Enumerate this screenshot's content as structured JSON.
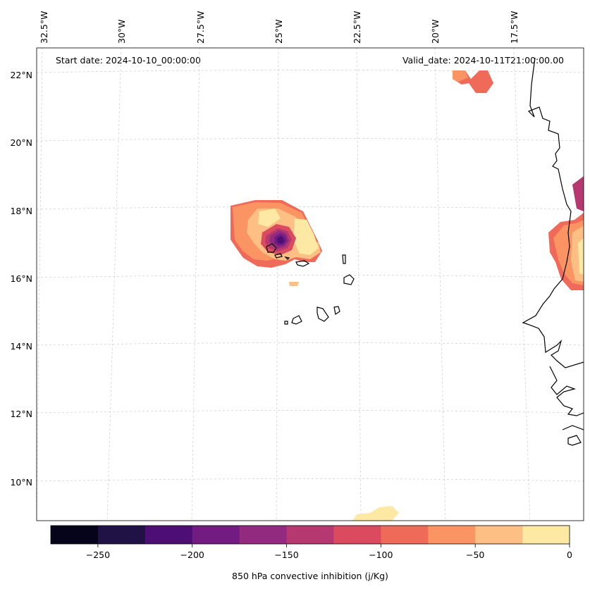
{
  "header": {
    "start_date": "Start date: 2024-10-10_00:00:00",
    "valid_date": "Valid_date: 2024-10-11T21:00:00.00"
  },
  "map": {
    "top_lon_labels": [
      "32.5°W",
      "30°W",
      "27.5°W",
      "25°W",
      "22.5°W",
      "20°W",
      "17.5°W"
    ],
    "left_lat_labels": [
      "22°N",
      "20°N",
      "18°N",
      "16°N",
      "14°N",
      "12°N",
      "10°N"
    ]
  },
  "colorbar": {
    "label": "850 hPa convective inhibition (j/Kg)",
    "tick_labels": [
      "−250",
      "−200",
      "−150",
      "−100",
      "−50",
      "0"
    ],
    "colors": [
      "#05041a",
      "#211245",
      "#4d0f75",
      "#721b80",
      "#922a7f",
      "#b63870",
      "#db4a5e",
      "#f06a5a",
      "#fb9463",
      "#febf84",
      "#fde8a4"
    ]
  }
}
